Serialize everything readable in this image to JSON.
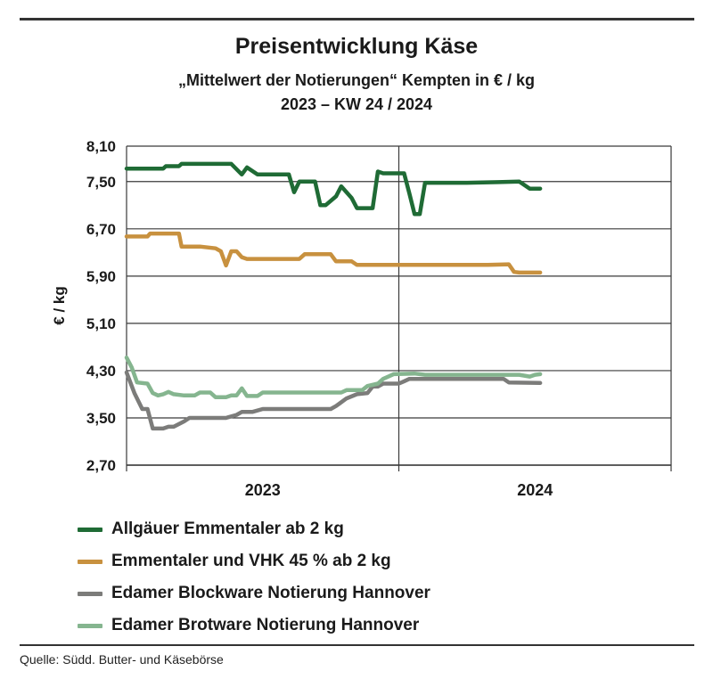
{
  "header": {
    "title": "Preisentwicklung Käse",
    "subtitle1": "„Mittelwert der Notierungen“ Kempten in € / kg",
    "subtitle2": "2023 – KW 24 / 2024"
  },
  "footer": {
    "source": "Quelle: Südd. Butter- und Käsebörse"
  },
  "chart_data": {
    "type": "line",
    "title": "Preisentwicklung Käse",
    "ylabel": "€ / kg",
    "xlabel": "",
    "ylim": [
      2.7,
      8.1
    ],
    "yticks": [
      2.7,
      3.5,
      4.3,
      5.1,
      5.9,
      6.7,
      7.5,
      8.1
    ],
    "ytick_labels": [
      "2,70",
      "3,50",
      "4,30",
      "5,10",
      "5,90",
      "6,70",
      "7,50",
      "8,10"
    ],
    "xlim": [
      1,
      105
    ],
    "x_unit": "KW 2023–2024",
    "x_categories": [
      {
        "label": "2023",
        "from": 1,
        "to": 53
      },
      {
        "label": "2024",
        "from": 53,
        "to": 105
      }
    ],
    "year_boundary": 53,
    "grid": true,
    "legend_position": "bottom",
    "series": [
      {
        "name": "Allgäuer Emmentaler ab 2 kg",
        "color": "#1f6b35",
        "points": [
          [
            1,
            7.72
          ],
          [
            8,
            7.72
          ],
          [
            8.5,
            7.76
          ],
          [
            11,
            7.76
          ],
          [
            11.5,
            7.8
          ],
          [
            21,
            7.8
          ],
          [
            23,
            7.62
          ],
          [
            24,
            7.74
          ],
          [
            26,
            7.62
          ],
          [
            32,
            7.62
          ],
          [
            33,
            7.32
          ],
          [
            34,
            7.5
          ],
          [
            37,
            7.5
          ],
          [
            38,
            7.1
          ],
          [
            39,
            7.1
          ],
          [
            41,
            7.25
          ],
          [
            42,
            7.42
          ],
          [
            44,
            7.22
          ],
          [
            45,
            7.05
          ],
          [
            48,
            7.05
          ],
          [
            49,
            7.67
          ],
          [
            50,
            7.64
          ],
          [
            54,
            7.64
          ],
          [
            55,
            7.3
          ],
          [
            56,
            6.95
          ],
          [
            57,
            6.95
          ],
          [
            58,
            7.48
          ],
          [
            66,
            7.48
          ],
          [
            72,
            7.49
          ],
          [
            76,
            7.5
          ],
          [
            78,
            7.38
          ],
          [
            80,
            7.38
          ]
        ]
      },
      {
        "name": "Emmentaler und VHK 45 % ab 2 kg",
        "color": "#c8913f",
        "points": [
          [
            1,
            6.57
          ],
          [
            5,
            6.57
          ],
          [
            5.5,
            6.62
          ],
          [
            11,
            6.62
          ],
          [
            11.5,
            6.4
          ],
          [
            15,
            6.4
          ],
          [
            18,
            6.37
          ],
          [
            19,
            6.32
          ],
          [
            20,
            6.08
          ],
          [
            21,
            6.32
          ],
          [
            22,
            6.32
          ],
          [
            23,
            6.22
          ],
          [
            24,
            6.19
          ],
          [
            34,
            6.19
          ],
          [
            35,
            6.27
          ],
          [
            40,
            6.27
          ],
          [
            41,
            6.15
          ],
          [
            44,
            6.15
          ],
          [
            45,
            6.09
          ],
          [
            70,
            6.09
          ],
          [
            74,
            6.1
          ],
          [
            75,
            5.97
          ],
          [
            76,
            5.96
          ],
          [
            80,
            5.96
          ]
        ]
      },
      {
        "name": "Edamer Blockware Notierung Hannover",
        "color": "#7c7c7a",
        "points": [
          [
            1,
            4.27
          ],
          [
            2.5,
            3.92
          ],
          [
            4,
            3.65
          ],
          [
            5,
            3.65
          ],
          [
            6,
            3.32
          ],
          [
            8,
            3.32
          ],
          [
            9,
            3.35
          ],
          [
            10,
            3.35
          ],
          [
            12,
            3.44
          ],
          [
            13,
            3.5
          ],
          [
            20,
            3.5
          ],
          [
            22,
            3.55
          ],
          [
            23,
            3.6
          ],
          [
            25,
            3.6
          ],
          [
            27,
            3.65
          ],
          [
            40,
            3.65
          ],
          [
            41,
            3.7
          ],
          [
            43,
            3.83
          ],
          [
            45,
            3.9
          ],
          [
            47,
            3.92
          ],
          [
            48,
            4.03
          ],
          [
            49,
            4.03
          ],
          [
            50,
            4.08
          ],
          [
            53,
            4.08
          ],
          [
            54,
            4.12
          ],
          [
            55,
            4.16
          ],
          [
            73,
            4.16
          ],
          [
            74,
            4.1
          ],
          [
            80,
            4.09
          ]
        ]
      },
      {
        "name": "Edamer Brotware Notierung Hannover",
        "color": "#85b58f",
        "points": [
          [
            1,
            4.52
          ],
          [
            2,
            4.35
          ],
          [
            3,
            4.1
          ],
          [
            5,
            4.08
          ],
          [
            6,
            3.92
          ],
          [
            7,
            3.88
          ],
          [
            8,
            3.9
          ],
          [
            9,
            3.94
          ],
          [
            10,
            3.9
          ],
          [
            12,
            3.88
          ],
          [
            14,
            3.88
          ],
          [
            15,
            3.93
          ],
          [
            17,
            3.93
          ],
          [
            18,
            3.85
          ],
          [
            20,
            3.85
          ],
          [
            21,
            3.88
          ],
          [
            22,
            3.88
          ],
          [
            23,
            4.0
          ],
          [
            24,
            3.87
          ],
          [
            26,
            3.87
          ],
          [
            27,
            3.93
          ],
          [
            42,
            3.93
          ],
          [
            43,
            3.97
          ],
          [
            46,
            3.97
          ],
          [
            47,
            4.04
          ],
          [
            49,
            4.08
          ],
          [
            50,
            4.16
          ],
          [
            51,
            4.2
          ],
          [
            52,
            4.24
          ],
          [
            56,
            4.25
          ],
          [
            58,
            4.23
          ],
          [
            76,
            4.23
          ],
          [
            78,
            4.2
          ],
          [
            79,
            4.23
          ],
          [
            80,
            4.24
          ]
        ]
      }
    ]
  }
}
